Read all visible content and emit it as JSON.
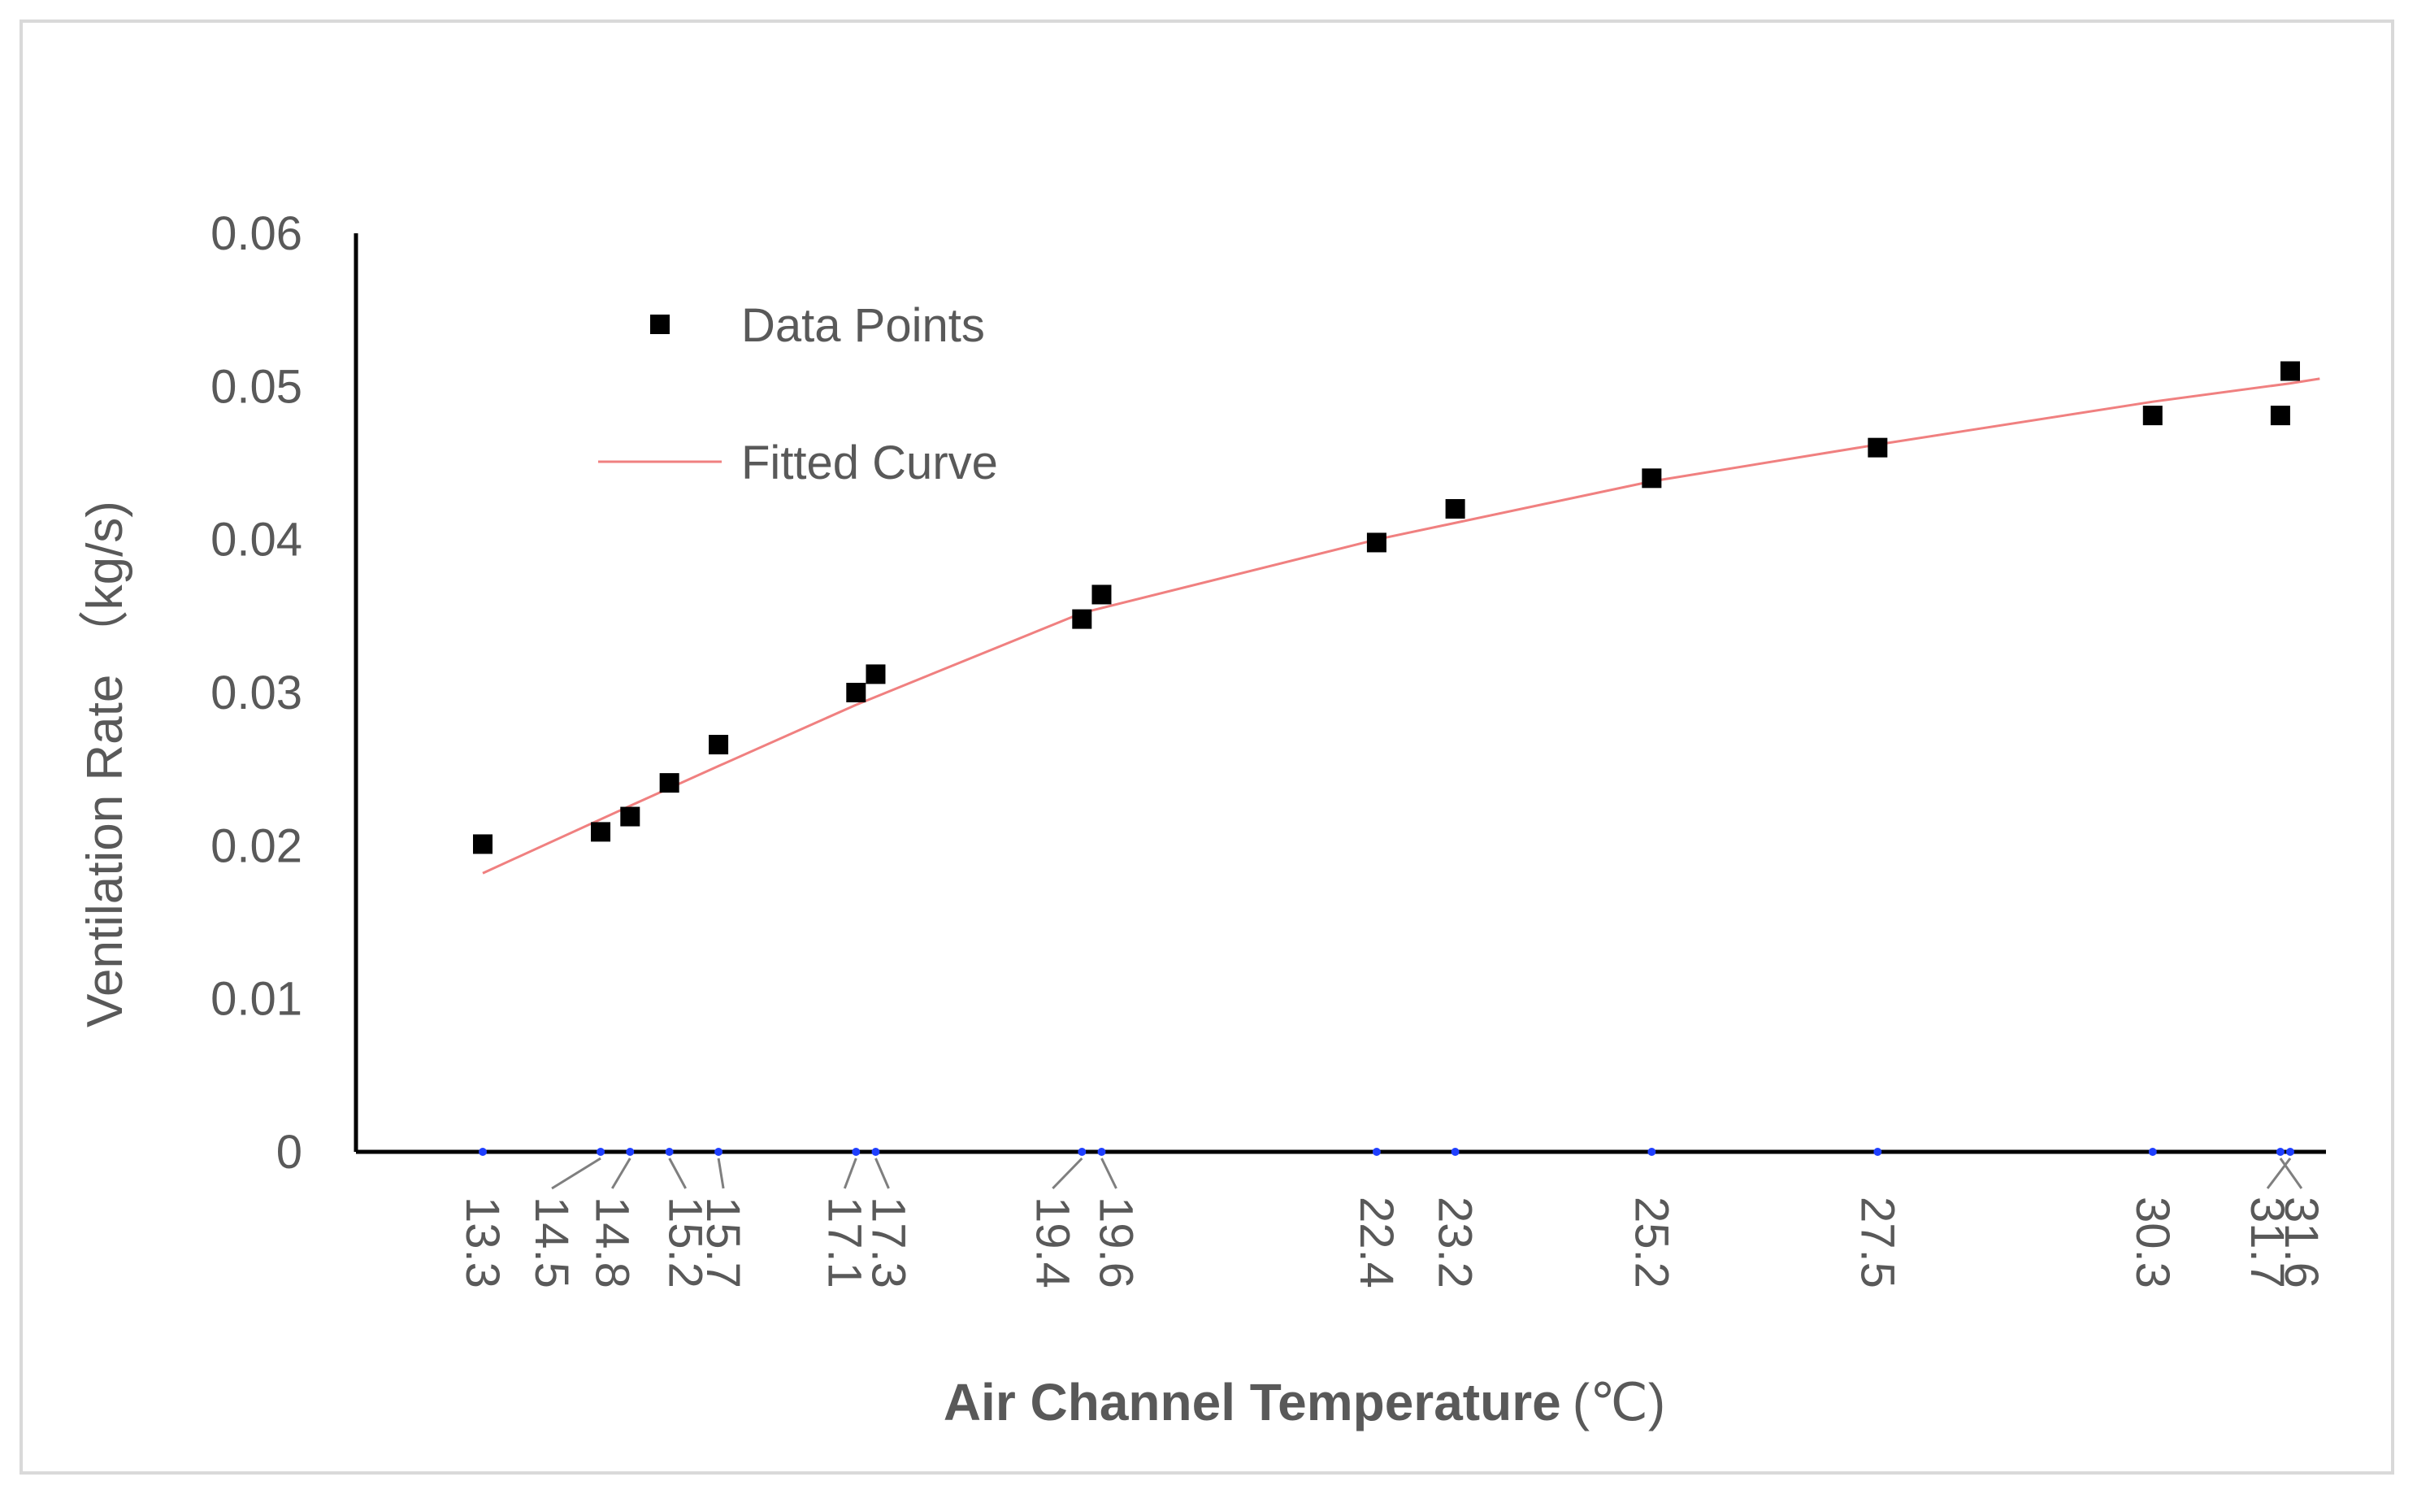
{
  "chart_data": {
    "type": "scatter",
    "xlabel": "Air Channel Temperature",
    "xlabel_unit": "(℃)",
    "ylabel": "Ventilation Rate （kg/s)",
    "ylim": [
      0,
      0.06
    ],
    "y_ticks": [
      "0",
      "0.01",
      "0.02",
      "0.03",
      "0.04",
      "0.05",
      "0.06"
    ],
    "x_ticks": [
      "13.3",
      "14.5",
      "14.8",
      "15.2",
      "15.7",
      "17.1",
      "17.3",
      "19.4",
      "19.6",
      "22.4",
      "23.2",
      "25.2",
      "27.5",
      "30.3",
      "31.7",
      "31.6"
    ],
    "grid": false,
    "legend_position": "top-left",
    "series": [
      {
        "name": "Data Points",
        "kind": "scatter",
        "color": "#000000",
        "x": [
          13.3,
          14.5,
          14.8,
          15.2,
          15.7,
          17.1,
          17.3,
          19.4,
          19.6,
          22.4,
          23.2,
          25.2,
          27.5,
          30.3,
          31.6,
          31.7
        ],
        "y": [
          0.0201,
          0.0209,
          0.0219,
          0.0241,
          0.0266,
          0.03,
          0.0312,
          0.0348,
          0.0364,
          0.0398,
          0.042,
          0.044,
          0.046,
          0.0481,
          0.0481,
          0.051
        ]
      },
      {
        "name": "Fitted Curve",
        "kind": "line",
        "color": "#f08080",
        "x": [
          13.3,
          14.8,
          15.7,
          17.1,
          19.4,
          22.4,
          25.2,
          27.5,
          30.3,
          31.7,
          32.0
        ],
        "y": [
          0.0182,
          0.0226,
          0.0252,
          0.0292,
          0.0352,
          0.04,
          0.0438,
          0.0462,
          0.049,
          0.0502,
          0.0505
        ]
      }
    ]
  }
}
